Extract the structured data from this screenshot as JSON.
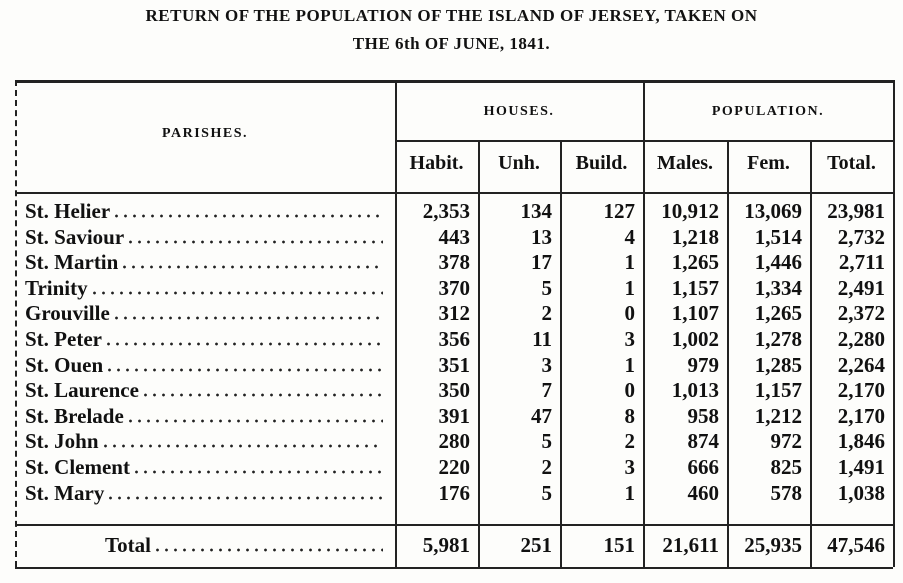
{
  "header": {
    "title_line1": "RETURN OF THE POPULATION OF THE ISLAND OF JERSEY, TAKEN ON",
    "title_line2": "THE 6th OF JUNE, 1841."
  },
  "table": {
    "group_headers": [
      "PARISHES.",
      "HOUSES.",
      "POPULATION."
    ],
    "columns": [
      "Habit.",
      "Unh.",
      "Build.",
      "Males.",
      "Fem.",
      "Total."
    ],
    "rows": [
      [
        "St. Helier",
        "2,353",
        "134",
        "127",
        "10,912",
        "13,069",
        "23,981"
      ],
      [
        "St. Saviour",
        "443",
        "13",
        "4",
        "1,218",
        "1,514",
        "2,732"
      ],
      [
        "St. Martin",
        "378",
        "17",
        "1",
        "1,265",
        "1,446",
        "2,711"
      ],
      [
        "Trinity",
        "370",
        "5",
        "1",
        "1,157",
        "1,334",
        "2,491"
      ],
      [
        "Grouville",
        "312",
        "2",
        "0",
        "1,107",
        "1,265",
        "2,372"
      ],
      [
        "St. Peter",
        "356",
        "11",
        "3",
        "1,002",
        "1,278",
        "2,280"
      ],
      [
        "St. Ouen",
        "351",
        "3",
        "1",
        "979",
        "1,285",
        "2,264"
      ],
      [
        "St. Laurence",
        "350",
        "7",
        "0",
        "1,013",
        "1,157",
        "2,170"
      ],
      [
        "St. Brelade",
        "391",
        "47",
        "8",
        "958",
        "1,212",
        "2,170"
      ],
      [
        "St. John",
        "280",
        "5",
        "2",
        "874",
        "972",
        "1,846"
      ],
      [
        "St. Clement",
        "220",
        "2",
        "3",
        "666",
        "825",
        "1,491"
      ],
      [
        "St. Mary",
        "176",
        "5",
        "1",
        "460",
        "578",
        "1,038"
      ]
    ],
    "total": [
      "Total",
      "5,981",
      "251",
      "151",
      "21,611",
      "25,935",
      "47,546"
    ]
  }
}
